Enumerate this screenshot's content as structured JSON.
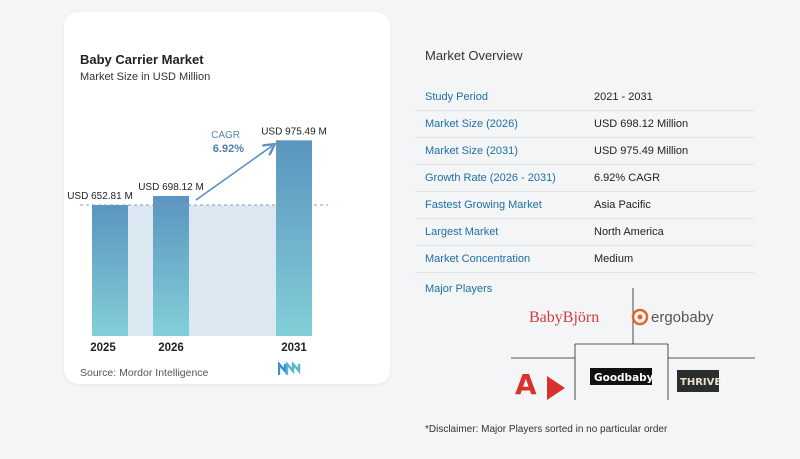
{
  "chart_data": {
    "type": "bar",
    "title": "Baby Carrier Market",
    "subtitle": "Market Size in USD Million",
    "categories": [
      "2025",
      "2026",
      "2031"
    ],
    "values": [
      652.81,
      698.12,
      975.49
    ],
    "value_labels": [
      "USD 652.81 M",
      "USD 698.12 M",
      "USD 975.49 M"
    ],
    "cagr_label": "CAGR",
    "cagr_value": "6.92%",
    "bar_color_top": "#5b95bf",
    "bar_color_bottom": "#82cfd8",
    "shade_color": "#dbe7f1",
    "arrow_color": "#5b8fbd",
    "grid": false
  },
  "source": "Source:  Mordor Intelligence",
  "overview": {
    "title": "Market Overview",
    "rows": [
      {
        "label": "Study Period",
        "value": "2021 - 2031"
      },
      {
        "label": "Market Size (2026)",
        "value": "USD 698.12 Million"
      },
      {
        "label": "Market Size (2031)",
        "value": "USD 975.49 Million"
      },
      {
        "label": "Growth Rate (2026 - 2031)",
        "value": "6.92% CAGR"
      },
      {
        "label": "Fastest Growing Market",
        "value": "Asia Pacific"
      },
      {
        "label": "Largest Market",
        "value": "North America"
      },
      {
        "label": "Market Concentration",
        "value": "Medium"
      }
    ]
  },
  "players": {
    "title": "Major Players",
    "logos": [
      "BabyBjörn",
      "ergobaby",
      "A",
      "Goodbaby",
      "THRIVE"
    ]
  },
  "disclaimer": "*Disclaimer: Major Players sorted in no particular order"
}
